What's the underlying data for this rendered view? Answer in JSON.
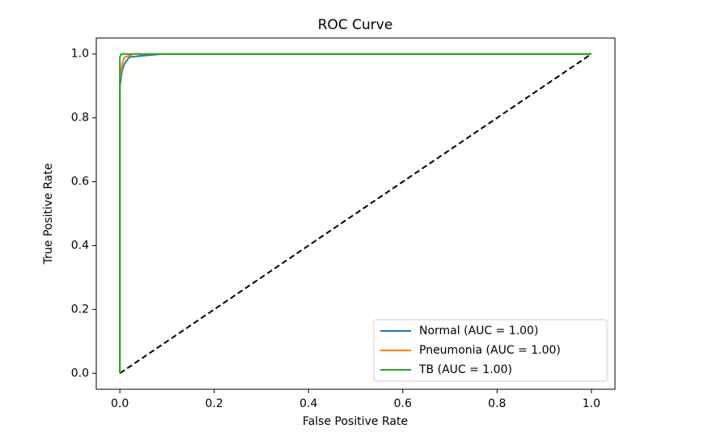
{
  "chart_data": {
    "type": "line",
    "title": "ROC Curve",
    "x_label": "False Positive Rate",
    "y_label": "True Positive Rate",
    "xlim": [
      -0.05,
      1.05
    ],
    "ylim": [
      -0.05,
      1.05
    ],
    "xticks": [
      {
        "value": 0,
        "label": "0.0"
      },
      {
        "value": 0.2,
        "label": "0.2"
      },
      {
        "value": 0.4,
        "label": "0.4"
      },
      {
        "value": 0.6,
        "label": "0.6"
      },
      {
        "value": 0.8,
        "label": "0.8"
      },
      {
        "value": 1,
        "label": "1.0"
      }
    ],
    "yticks": [
      {
        "value": 0,
        "label": "0.0"
      },
      {
        "value": 0.2,
        "label": "0.2"
      },
      {
        "value": 0.4,
        "label": "0.4"
      },
      {
        "value": 0.6,
        "label": "0.6"
      },
      {
        "value": 0.8,
        "label": "0.8"
      },
      {
        "value": 1,
        "label": "1.0"
      }
    ],
    "legend": "lower right",
    "series": [
      {
        "name": "Normal (AUC = 1.00)",
        "color": "#1f77b4",
        "x": [
          0,
          0,
          0.005,
          0.01,
          0.02,
          0.05,
          0.09,
          1
        ],
        "values": [
          0,
          0.9,
          0.95,
          0.97,
          0.99,
          0.995,
          1,
          1
        ]
      },
      {
        "name": "Pneumonia (AUC = 1.00)",
        "color": "#ff7f0e",
        "x": [
          0,
          0,
          0.005,
          0.01,
          0.03,
          1
        ],
        "values": [
          0,
          0.92,
          0.97,
          0.99,
          1,
          1
        ]
      },
      {
        "name": "TB (AUC = 1.00)",
        "color": "#2ca02c",
        "x": [
          0,
          0,
          0.003,
          1
        ],
        "values": [
          0,
          0.99,
          1,
          1
        ]
      }
    ],
    "diagonal": {
      "x": [
        0,
        1
      ],
      "values": [
        0,
        1
      ],
      "color": "#000000"
    }
  }
}
